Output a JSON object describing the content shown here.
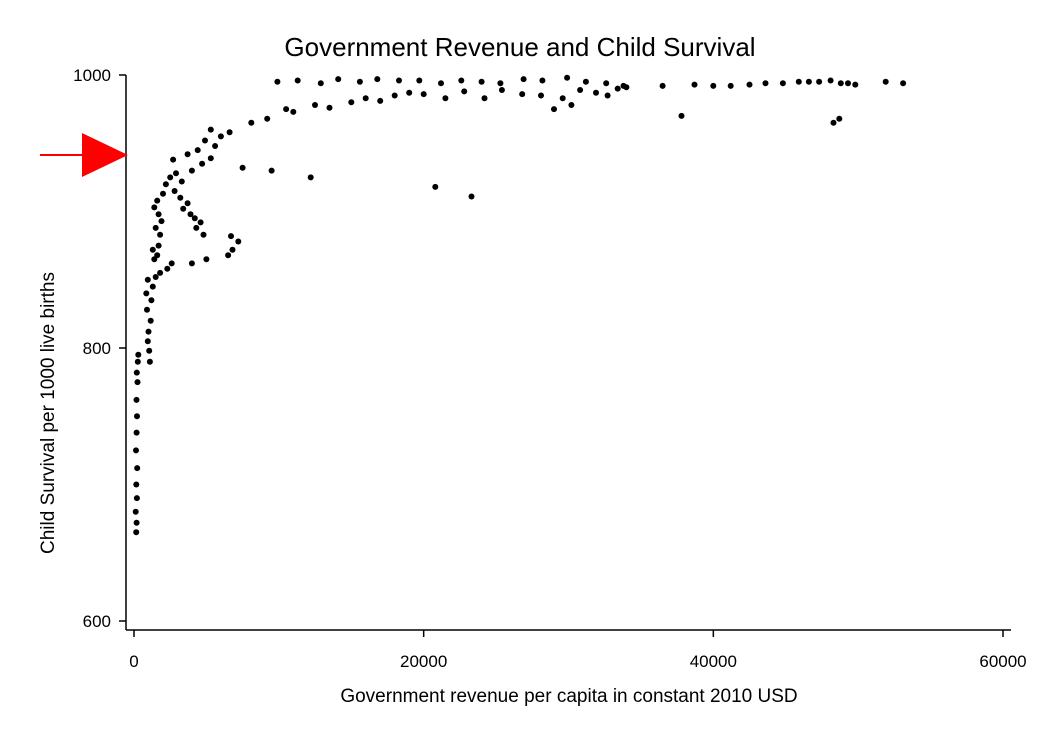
{
  "chart_data": {
    "type": "scatter",
    "title": "Government Revenue and Child Survival",
    "xlabel": "Government revenue per capita in constant 2010 USD",
    "ylabel": "Child Survival per 1000 live births",
    "xlim": [
      0,
      60000
    ],
    "ylim": [
      600,
      1000
    ],
    "xticks": [
      0,
      20000,
      40000,
      60000
    ],
    "yticks": [
      600,
      800,
      1000
    ],
    "grid": false,
    "marker_color": "#000000",
    "annotation_color": "#ff0000",
    "annotation": {
      "type": "arrow",
      "points_to": {
        "x": 0,
        "y": 942
      }
    },
    "series": [
      {
        "points": [
          [
            150,
            665
          ],
          [
            180,
            672
          ],
          [
            120,
            680
          ],
          [
            200,
            690
          ],
          [
            160,
            700
          ],
          [
            220,
            712
          ],
          [
            140,
            725
          ],
          [
            180,
            738
          ],
          [
            210,
            750
          ],
          [
            170,
            762
          ],
          [
            240,
            775
          ],
          [
            190,
            782
          ],
          [
            260,
            790
          ],
          [
            300,
            795
          ],
          [
            1100,
            790
          ],
          [
            1050,
            798
          ],
          [
            950,
            805
          ],
          [
            1000,
            812
          ],
          [
            1150,
            820
          ],
          [
            900,
            828
          ],
          [
            1200,
            835
          ],
          [
            850,
            840
          ],
          [
            1300,
            845
          ],
          [
            950,
            850
          ],
          [
            1500,
            852
          ],
          [
            1800,
            855
          ],
          [
            2300,
            858
          ],
          [
            2600,
            862
          ],
          [
            1400,
            865
          ],
          [
            1600,
            868
          ],
          [
            1300,
            872
          ],
          [
            1700,
            875
          ],
          [
            5000,
            865
          ],
          [
            4000,
            862
          ],
          [
            6500,
            868
          ],
          [
            6800,
            872
          ],
          [
            7200,
            878
          ],
          [
            6700,
            882
          ],
          [
            1800,
            883
          ],
          [
            1500,
            888
          ],
          [
            1900,
            893
          ],
          [
            1700,
            898
          ],
          [
            1400,
            903
          ],
          [
            1600,
            908
          ],
          [
            2000,
            913
          ],
          [
            2800,
            915
          ],
          [
            3200,
            910
          ],
          [
            3700,
            906
          ],
          [
            3400,
            902
          ],
          [
            3900,
            898
          ],
          [
            4200,
            895
          ],
          [
            4600,
            892
          ],
          [
            4300,
            888
          ],
          [
            4800,
            883
          ],
          [
            2200,
            920
          ],
          [
            2500,
            925
          ],
          [
            2900,
            928
          ],
          [
            3300,
            922
          ],
          [
            4000,
            930
          ],
          [
            4700,
            935
          ],
          [
            5300,
            939
          ],
          [
            4400,
            945
          ],
          [
            3700,
            942
          ],
          [
            2700,
            938
          ],
          [
            5600,
            948
          ],
          [
            4900,
            952
          ],
          [
            6000,
            955
          ],
          [
            5300,
            960
          ],
          [
            6600,
            958
          ],
          [
            7500,
            932
          ],
          [
            9500,
            930
          ],
          [
            12200,
            925
          ],
          [
            20800,
            918
          ],
          [
            23300,
            911
          ],
          [
            8100,
            965
          ],
          [
            9200,
            968
          ],
          [
            10500,
            975
          ],
          [
            11000,
            973
          ],
          [
            12500,
            978
          ],
          [
            13500,
            976
          ],
          [
            15000,
            980
          ],
          [
            16000,
            983
          ],
          [
            17000,
            981
          ],
          [
            18000,
            985
          ],
          [
            19000,
            987
          ],
          [
            20000,
            986
          ],
          [
            21500,
            983
          ],
          [
            22800,
            988
          ],
          [
            24200,
            983
          ],
          [
            25400,
            989
          ],
          [
            26800,
            986
          ],
          [
            28100,
            985
          ],
          [
            29000,
            975
          ],
          [
            29600,
            983
          ],
          [
            30200,
            978
          ],
          [
            30800,
            989
          ],
          [
            31900,
            987
          ],
          [
            32700,
            985
          ],
          [
            33400,
            990
          ],
          [
            34000,
            991
          ],
          [
            36500,
            992
          ],
          [
            37800,
            970
          ],
          [
            38700,
            993
          ],
          [
            40000,
            992
          ],
          [
            41200,
            992
          ],
          [
            42500,
            993
          ],
          [
            43600,
            994
          ],
          [
            44800,
            994
          ],
          [
            45900,
            995
          ],
          [
            46600,
            995
          ],
          [
            47300,
            995
          ],
          [
            48100,
            996
          ],
          [
            48800,
            994
          ],
          [
            49300,
            994
          ],
          [
            49800,
            993
          ],
          [
            48300,
            965
          ],
          [
            48700,
            968
          ],
          [
            51900,
            995
          ],
          [
            53100,
            994
          ],
          [
            9900,
            995
          ],
          [
            11300,
            996
          ],
          [
            12900,
            994
          ],
          [
            14100,
            997
          ],
          [
            15600,
            995
          ],
          [
            16800,
            997
          ],
          [
            18300,
            996
          ],
          [
            19700,
            996
          ],
          [
            21200,
            994
          ],
          [
            22600,
            996
          ],
          [
            24000,
            995
          ],
          [
            25300,
            994
          ],
          [
            26900,
            997
          ],
          [
            28200,
            996
          ],
          [
            29900,
            998
          ],
          [
            31200,
            995
          ],
          [
            32600,
            994
          ],
          [
            33800,
            992
          ]
        ]
      }
    ]
  }
}
